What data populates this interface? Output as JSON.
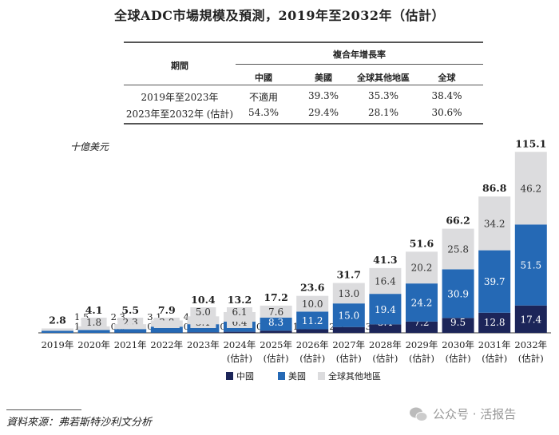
{
  "title": "全球ADC市場規模及預測，2019年至2032年（估計）",
  "table": {
    "period_header": "期間",
    "cagr_header": "複合年增長率",
    "columns": [
      "中國",
      "美國",
      "全球其他地區",
      "全球"
    ],
    "rows": [
      {
        "period": "2019年至2023年",
        "values": [
          "不適用",
          "39.3%",
          "35.3%",
          "38.4%"
        ]
      },
      {
        "period": "2023年至2032年 (估計)",
        "values": [
          "54.3%",
          "29.4%",
          "28.1%",
          "30.6%"
        ]
      }
    ]
  },
  "chart_data": {
    "type": "stacked-bar",
    "ylabel": "十億美元",
    "categories": [
      "2019年",
      "2020年",
      "2021年",
      "2022年",
      "2023年",
      "2024年",
      "2025年",
      "2026年",
      "2027年",
      "2028年",
      "2029年",
      "2030年",
      "2031年",
      "2032年"
    ],
    "category_sublabels": [
      "",
      "",
      "",
      "",
      "",
      "(估計)",
      "(估計)",
      "(估計)",
      "(估計)",
      "(估計)",
      "(估計)",
      "(估計)",
      "(估計)",
      "(估計)"
    ],
    "series": [
      {
        "name": "中國",
        "color": "#1c2559",
        "values": [
          null,
          0.0,
          0.1,
          0.1,
          0.4,
          0.7,
          1.4,
          2.3,
          3.7,
          5.4,
          7.2,
          9.5,
          12.8,
          17.4
        ]
      },
      {
        "name": "美國",
        "color": "#2569b5",
        "values": [
          1.3,
          1.8,
          2.3,
          3.8,
          5.1,
          6.4,
          8.3,
          11.2,
          15.0,
          19.4,
          24.2,
          30.9,
          39.7,
          51.5
        ]
      },
      {
        "name": "全球其他地區",
        "color": "#dcdcde",
        "values": [
          1.5,
          2.3,
          3.1,
          4.0,
          5.0,
          6.1,
          7.6,
          10.0,
          13.0,
          16.4,
          20.2,
          25.8,
          34.2,
          46.2
        ]
      }
    ],
    "totals": [
      2.8,
      4.1,
      5.5,
      7.9,
      10.4,
      13.2,
      17.2,
      23.6,
      31.7,
      41.3,
      51.6,
      66.2,
      86.8,
      115.1
    ],
    "legend_position": "bottom",
    "grid": false
  },
  "source": "資料來源：弗若斯特沙利文分析",
  "watermark": "公众号 · 活报告"
}
